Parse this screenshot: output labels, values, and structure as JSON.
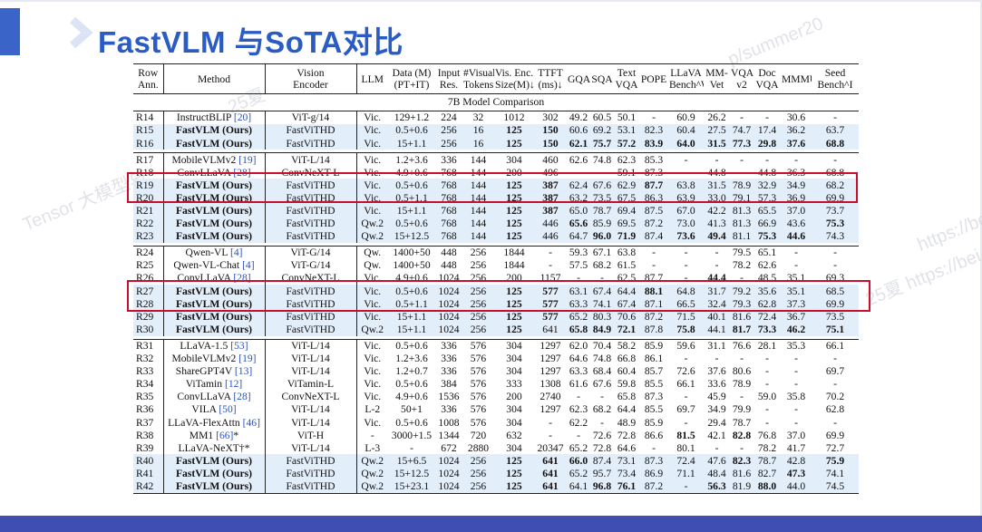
{
  "title": "FastVLM 与SoTA对比",
  "watermarks": [
    "Tensor 大模型与",
    "https://be",
    "p/summer20",
    "25夏",
    "25夏 https://bei"
  ],
  "colors": {
    "title": "#2b5cc4",
    "accent_bar": "#3a64c8",
    "footer": "#3f4eb3",
    "highlight_box": "#c8102e",
    "fastvlm_row_bg": "#e3eefb"
  },
  "table": {
    "headers": [
      [
        "Row",
        "Ann."
      ],
      [
        "Method"
      ],
      [
        "Vision",
        "Encoder"
      ],
      [
        "LLM"
      ],
      [
        "Data (M)",
        "(PT+IT)"
      ],
      [
        "Input",
        "Res."
      ],
      [
        "#Visual",
        "Tokens"
      ],
      [
        "Vis. Enc.",
        "Size(M)↓"
      ],
      [
        "TTFT",
        "(ms)↓"
      ],
      [
        "GQA"
      ],
      [
        "SQA"
      ],
      [
        "Text",
        "VQA"
      ],
      [
        "POPE"
      ],
      [
        "LLaVA",
        "Bench^W"
      ],
      [
        "MM-",
        "Vet"
      ],
      [
        "VQA",
        "v2"
      ],
      [
        "Doc",
        "VQA"
      ],
      [
        "MMMU"
      ],
      [
        "Seed",
        "Bench^I"
      ]
    ],
    "section_title": "7B Model Comparison",
    "rows": [
      {
        "c": [
          "R14",
          "InstructBLIP [20]",
          "ViT-g/14",
          "Vic.",
          "129+1.2",
          "224",
          "32",
          "1012",
          "302",
          "49.2",
          "60.5",
          "50.1",
          "-",
          "60.9",
          "26.2",
          "-",
          "-",
          "30.6",
          "-"
        ]
      },
      {
        "c": [
          "R15",
          "FastVLM (Ours)",
          "FastViTHD",
          "Vic.",
          "0.5+0.6",
          "256",
          "16",
          "125",
          "150",
          "60.6",
          "69.2",
          "53.1",
          "82.3",
          "60.4",
          "27.5",
          "74.7",
          "17.4",
          "36.2",
          "63.7"
        ],
        "blue": true,
        "bold": [
          1,
          7,
          8
        ]
      },
      {
        "c": [
          "R16",
          "FastVLM (Ours)",
          "FastViTHD",
          "Vic.",
          "15+1.1",
          "256",
          "16",
          "125",
          "150",
          "62.1",
          "75.7",
          "57.2",
          "83.9",
          "64.0",
          "31.5",
          "77.3",
          "29.8",
          "37.6",
          "68.8"
        ],
        "blue": true,
        "bold": [
          1,
          7,
          8,
          9,
          10,
          11,
          12,
          13,
          14,
          15,
          16,
          17,
          18
        ]
      },
      {
        "gap": true
      },
      {
        "c": [
          "R17",
          "MobileVLMv2 [19]",
          "ViT-L/14",
          "Vic.",
          "1.2+3.6",
          "336",
          "144",
          "304",
          "460",
          "62.6",
          "74.8",
          "62.3",
          "85.3",
          "-",
          "-",
          "-",
          "-",
          "-",
          "-"
        ]
      },
      {
        "c": [
          "R18",
          "ConvLLaVA [28]",
          "ConvNeXT-L",
          "Vic.",
          "4.9+0.6",
          "768",
          "144",
          "200",
          "496",
          "-",
          "-",
          "59.1",
          "87.3",
          "-",
          "44.8",
          "-",
          "44.8",
          "36.3",
          "68.8"
        ]
      },
      {
        "c": [
          "R19",
          "FastVLM (Ours)",
          "FastViTHD",
          "Vic.",
          "0.5+0.6",
          "768",
          "144",
          "125",
          "387",
          "62.4",
          "67.6",
          "62.9",
          "87.7",
          "63.8",
          "31.5",
          "78.9",
          "32.9",
          "34.9",
          "68.2"
        ],
        "blue": true,
        "bold": [
          1,
          7,
          8,
          12
        ]
      },
      {
        "c": [
          "R20",
          "FastVLM (Ours)",
          "FastViTHD",
          "Vic.",
          "0.5+1.1",
          "768",
          "144",
          "125",
          "387",
          "63.2",
          "73.5",
          "67.5",
          "86.3",
          "63.9",
          "33.0",
          "79.1",
          "57.3",
          "36.9",
          "69.9"
        ],
        "blue": true,
        "bold": [
          1,
          7,
          8
        ]
      },
      {
        "c": [
          "R21",
          "FastVLM (Ours)",
          "FastViTHD",
          "Vic.",
          "15+1.1",
          "768",
          "144",
          "125",
          "387",
          "65.0",
          "78.7",
          "69.4",
          "87.5",
          "67.0",
          "42.2",
          "81.3",
          "65.5",
          "37.0",
          "73.7"
        ],
        "blue": true,
        "bold": [
          1,
          7,
          8
        ]
      },
      {
        "c": [
          "R22",
          "FastVLM (Ours)",
          "FastViTHD",
          "Qw.2",
          "0.5+0.6",
          "768",
          "144",
          "125",
          "446",
          "65.6",
          "85.9",
          "69.5",
          "87.2",
          "73.0",
          "41.3",
          "81.3",
          "66.9",
          "43.6",
          "75.3"
        ],
        "blue": true,
        "bold": [
          1,
          7,
          9,
          18
        ]
      },
      {
        "c": [
          "R23",
          "FastVLM (Ours)",
          "FastViTHD",
          "Qw.2",
          "15+12.5",
          "768",
          "144",
          "125",
          "446",
          "64.7",
          "96.0",
          "71.9",
          "87.4",
          "73.6",
          "49.4",
          "81.1",
          "75.3",
          "44.6",
          "74.3"
        ],
        "blue": true,
        "bold": [
          1,
          7,
          10,
          11,
          13,
          14,
          16,
          17
        ]
      },
      {
        "gap": true
      },
      {
        "c": [
          "R24",
          "Qwen-VL [4]",
          "ViT-G/14",
          "Qw.",
          "1400+50",
          "448",
          "256",
          "1844",
          "-",
          "59.3",
          "67.1",
          "63.8",
          "-",
          "-",
          "-",
          "79.5",
          "65.1",
          "-",
          "-"
        ]
      },
      {
        "c": [
          "R25",
          "Qwen-VL-Chat [4]",
          "ViT-G/14",
          "Qw.",
          "1400+50",
          "448",
          "256",
          "1844",
          "-",
          "57.5",
          "68.2",
          "61.5",
          "-",
          "-",
          "-",
          "78.2",
          "62.6",
          "-",
          "-"
        ]
      },
      {
        "c": [
          "R26",
          "ConvLLaVA [28]",
          "ConvNeXT-L",
          "Vic.",
          "4.9+0.6",
          "1024",
          "256",
          "200",
          "1157",
          "-",
          "-",
          "62.5",
          "87.7",
          "-",
          "44.4",
          "-",
          "48.5",
          "35.1",
          "69.3"
        ],
        "bold": [
          14
        ]
      },
      {
        "c": [
          "R27",
          "FastVLM (Ours)",
          "FastViTHD",
          "Vic.",
          "0.5+0.6",
          "1024",
          "256",
          "125",
          "577",
          "63.1",
          "67.4",
          "64.4",
          "88.1",
          "64.8",
          "31.7",
          "79.2",
          "35.6",
          "35.1",
          "68.5"
        ],
        "blue": true,
        "bold": [
          1,
          7,
          8,
          12
        ]
      },
      {
        "c": [
          "R28",
          "FastVLM (Ours)",
          "FastViTHD",
          "Vic.",
          "0.5+1.1",
          "1024",
          "256",
          "125",
          "577",
          "63.3",
          "74.1",
          "67.4",
          "87.1",
          "66.5",
          "32.4",
          "79.3",
          "62.8",
          "37.3",
          "69.9"
        ],
        "blue": true,
        "bold": [
          1,
          7,
          8
        ]
      },
      {
        "c": [
          "R29",
          "FastVLM (Ours)",
          "FastViTHD",
          "Vic.",
          "15+1.1",
          "1024",
          "256",
          "125",
          "577",
          "65.2",
          "80.3",
          "70.6",
          "87.2",
          "71.5",
          "40.1",
          "81.6",
          "72.4",
          "36.7",
          "73.5"
        ],
        "blue": true,
        "bold": [
          1,
          7,
          8
        ]
      },
      {
        "c": [
          "R30",
          "FastVLM (Ours)",
          "FastViTHD",
          "Qw.2",
          "15+1.1",
          "1024",
          "256",
          "125",
          "641",
          "65.8",
          "84.9",
          "72.1",
          "87.8",
          "75.8",
          "44.1",
          "81.7",
          "73.3",
          "46.2",
          "75.1"
        ],
        "blue": true,
        "bold": [
          1,
          7,
          9,
          10,
          11,
          13,
          15,
          16,
          17,
          18
        ]
      },
      {
        "gap": true
      },
      {
        "c": [
          "R31",
          "LLaVA-1.5 [53]",
          "ViT-L/14",
          "Vic.",
          "0.5+0.6",
          "336",
          "576",
          "304",
          "1297",
          "62.0",
          "70.4",
          "58.2",
          "85.9",
          "59.6",
          "31.1",
          "76.6",
          "28.1",
          "35.3",
          "66.1"
        ]
      },
      {
        "c": [
          "R32",
          "MobileVLMv2 [19]",
          "ViT-L/14",
          "Vic.",
          "1.2+3.6",
          "336",
          "576",
          "304",
          "1297",
          "64.6",
          "74.8",
          "66.8",
          "86.1",
          "-",
          "-",
          "-",
          "-",
          "-",
          "-"
        ]
      },
      {
        "c": [
          "R33",
          "ShareGPT4V [13]",
          "ViT-L/14",
          "Vic.",
          "1.2+0.7",
          "336",
          "576",
          "304",
          "1297",
          "63.3",
          "68.4",
          "60.4",
          "85.7",
          "72.6",
          "37.6",
          "80.6",
          "-",
          "-",
          "69.7"
        ]
      },
      {
        "c": [
          "R34",
          "ViTamin [12]",
          "ViTamin-L",
          "Vic.",
          "0.5+0.6",
          "384",
          "576",
          "333",
          "1308",
          "61.6",
          "67.6",
          "59.8",
          "85.5",
          "66.1",
          "33.6",
          "78.9",
          "-",
          "-",
          "-"
        ]
      },
      {
        "c": [
          "R35",
          "ConvLLaVA [28]",
          "ConvNeXT-L",
          "Vic.",
          "4.9+0.6",
          "1536",
          "576",
          "200",
          "2740",
          "-",
          "-",
          "65.8",
          "87.3",
          "-",
          "45.9",
          "-",
          "59.0",
          "35.8",
          "70.2"
        ]
      },
      {
        "c": [
          "R36",
          "VILA [50]",
          "ViT-L/14",
          "L-2",
          "50+1",
          "336",
          "576",
          "304",
          "1297",
          "62.3",
          "68.2",
          "64.4",
          "85.5",
          "69.7",
          "34.9",
          "79.9",
          "-",
          "-",
          "62.8"
        ]
      },
      {
        "c": [
          "R37",
          "LLaVA-FlexAttn [46]",
          "ViT-L/14",
          "Vic.",
          "0.5+0.6",
          "1008",
          "576",
          "304",
          "-",
          "62.2",
          "-",
          "48.9",
          "85.9",
          "-",
          "29.4",
          "78.7",
          "-",
          "-",
          "-"
        ]
      },
      {
        "c": [
          "R38",
          "MM1 [66]*",
          "ViT-H",
          "-",
          "3000+1.5",
          "1344",
          "720",
          "632",
          "-",
          "-",
          "72.6",
          "72.8",
          "86.6",
          "81.5",
          "42.1",
          "82.8",
          "76.8",
          "37.0",
          "69.9"
        ],
        "bold": [
          13,
          15
        ]
      },
      {
        "c": [
          "R39",
          "LLaVA-NeXT†*",
          "ViT-L/14",
          "L-3",
          "-",
          "672",
          "2880",
          "304",
          "20347",
          "65.2",
          "72.8",
          "64.6",
          "-",
          "80.1",
          "-",
          "-",
          "78.2",
          "41.7",
          "72.7"
        ]
      },
      {
        "c": [
          "R40",
          "FastVLM (Ours)",
          "FastViTHD",
          "Qw.2",
          "15+6.5",
          "1024",
          "256",
          "125",
          "641",
          "66.0",
          "87.4",
          "73.1",
          "87.3",
          "72.4",
          "47.6",
          "82.3",
          "78.7",
          "42.8",
          "75.9"
        ],
        "blue": true,
        "bold": [
          1,
          7,
          8,
          9,
          15,
          18
        ]
      },
      {
        "c": [
          "R41",
          "FastVLM (Ours)",
          "FastViTHD",
          "Qw.2",
          "15+12.5",
          "1024",
          "256",
          "125",
          "641",
          "65.2",
          "95.7",
          "73.4",
          "86.9",
          "71.1",
          "48.4",
          "81.6",
          "82.7",
          "47.3",
          "74.1"
        ],
        "blue": true,
        "bold": [
          1,
          7,
          8,
          17
        ]
      },
      {
        "c": [
          "R42",
          "FastVLM (Ours)",
          "FastViTHD",
          "Qw.2",
          "15+23.1",
          "1024",
          "256",
          "125",
          "641",
          "64.1",
          "96.8",
          "76.1",
          "87.2",
          "-",
          "56.3",
          "81.9",
          "88.0",
          "44.0",
          "74.5"
        ],
        "blue": true,
        "bold": [
          1,
          7,
          8,
          10,
          11,
          14,
          16
        ],
        "last": true
      }
    ]
  }
}
